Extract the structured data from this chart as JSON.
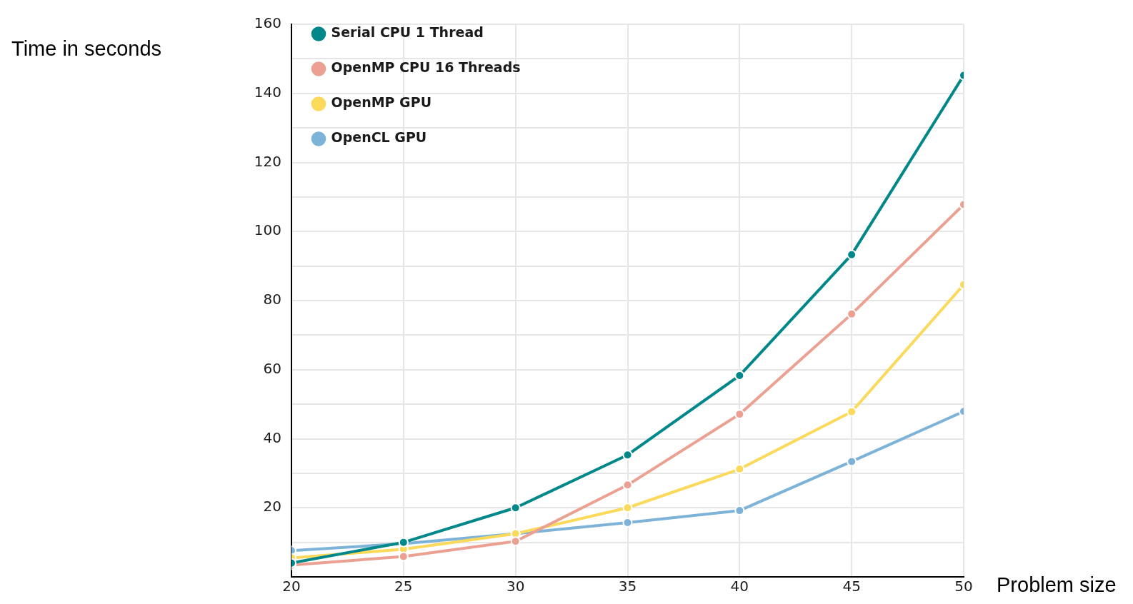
{
  "chart_data": {
    "type": "line",
    "xlabel": "Problem size",
    "ylabel": "Time in seconds",
    "x": [
      20,
      25,
      30,
      35,
      40,
      45,
      50
    ],
    "series": [
      {
        "name": "Serial CPU 1 Thread",
        "color": "#00878a",
        "values": [
          4,
          10,
          20,
          35.3,
          58.3,
          93.3,
          145.2
        ]
      },
      {
        "name": "OpenMP CPU 16 Threads",
        "color": "#eba092",
        "values": [
          3.4,
          5.9,
          10.3,
          26.6,
          47.1,
          76.1,
          107.8
        ]
      },
      {
        "name": "OpenMP GPU",
        "color": "#fbd95b",
        "values": [
          5.5,
          8,
          12.5,
          20,
          31.2,
          47.8,
          84.6
        ]
      },
      {
        "name": "OpenCL GPU",
        "color": "#7db3d8",
        "values": [
          7.6,
          9.6,
          12.5,
          15.7,
          19.2,
          33.4,
          47.9
        ]
      }
    ],
    "xlim": [
      20,
      50
    ],
    "xticks": [
      20,
      25,
      30,
      35,
      40,
      45,
      50
    ],
    "ylim": [
      0,
      160
    ],
    "yticks": [
      {
        "value": 0,
        "label": null
      },
      {
        "value": 10,
        "label": null
      },
      20,
      {
        "value": 30,
        "label": null
      },
      40,
      {
        "value": 50,
        "label": null
      },
      60,
      {
        "value": 70,
        "label": null
      },
      80,
      {
        "value": 90,
        "label": null
      },
      100,
      {
        "value": 110,
        "label": null
      },
      120,
      {
        "value": 130,
        "label": null
      },
      140,
      {
        "value": 150,
        "label": null
      },
      160
    ],
    "grid": true,
    "legend": "top left",
    "marker": "circle",
    "line_style": "solid"
  }
}
